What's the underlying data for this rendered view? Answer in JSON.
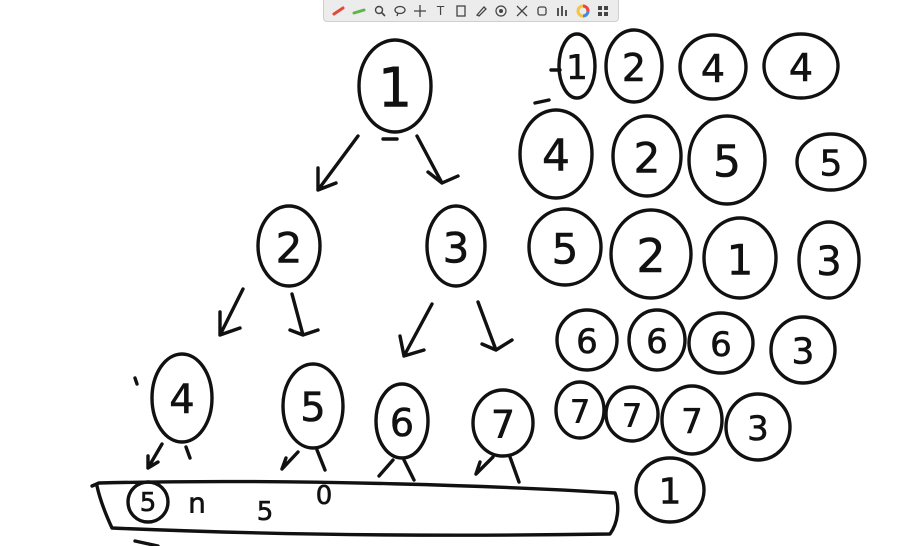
{
  "toolbar": {
    "tools": [
      {
        "name": "pen-red-icon",
        "glyph": ""
      },
      {
        "name": "highlighter-icon",
        "glyph": ""
      },
      {
        "name": "zoom-icon",
        "glyph": ""
      },
      {
        "name": "lasso-icon",
        "glyph": ""
      },
      {
        "name": "move-icon",
        "glyph": ""
      },
      {
        "name": "text-tool-icon",
        "glyph": "T"
      },
      {
        "name": "page-icon",
        "glyph": ""
      },
      {
        "name": "eraser-icon",
        "glyph": ""
      },
      {
        "name": "target-icon",
        "glyph": ""
      },
      {
        "name": "expand-icon",
        "glyph": ""
      },
      {
        "name": "stamp-icon",
        "glyph": ""
      },
      {
        "name": "settings-icon",
        "glyph": ""
      },
      {
        "name": "color-wheel-icon",
        "glyph": ""
      },
      {
        "name": "grid-icon",
        "glyph": ""
      }
    ],
    "colors": {
      "red": "#e04a3a",
      "green": "#5fb548",
      "wheel1": "#f5c542",
      "wheel2": "#e44",
      "wheel3": "#3a8ee6"
    }
  },
  "tree": {
    "root": "1",
    "level2": [
      "2",
      "3"
    ],
    "level3": [
      "4",
      "5",
      "6",
      "7"
    ]
  },
  "bottom_row": {
    "circled": "5",
    "items": [
      "n",
      "5",
      "0"
    ]
  },
  "grid_numbers": [
    [
      "1",
      "2",
      "4",
      "4"
    ],
    [
      "4",
      "2",
      "5",
      "5"
    ],
    [
      "5",
      "2",
      "1",
      "3"
    ],
    [
      "6",
      "6",
      "6",
      "3"
    ],
    [
      "7",
      "7",
      "7",
      "3"
    ]
  ],
  "extra_number": "1"
}
